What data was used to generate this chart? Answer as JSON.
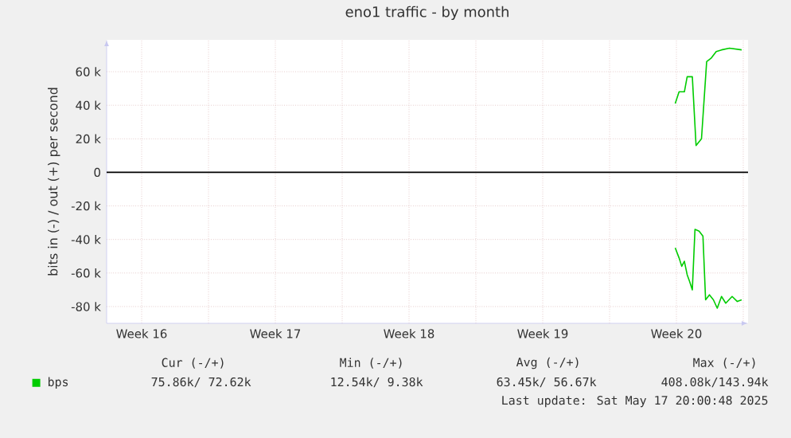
{
  "chart_data": {
    "type": "line",
    "title": "eno1 traffic - by month",
    "ylabel": "bits in (-) / out (+) per second",
    "xlim": [
      "2025-04-14T16:00",
      "2025-05-18T06:00"
    ],
    "ylim": [
      -90000,
      79000
    ],
    "xticks": [
      {
        "value": "2025-04-16T12:00",
        "label": "Week 16"
      },
      {
        "value": "2025-04-20",
        "label": null
      },
      {
        "value": "2025-04-23T12:00",
        "label": "Week 17"
      },
      {
        "value": "2025-04-27",
        "label": null
      },
      {
        "value": "2025-04-30T12:00",
        "label": "Week 18"
      },
      {
        "value": "2025-05-04",
        "label": null
      },
      {
        "value": "2025-05-07T12:00",
        "label": "Week 19"
      },
      {
        "value": "2025-05-11",
        "label": null
      },
      {
        "value": "2025-05-14T12:00",
        "label": "Week 20"
      },
      {
        "value": "2025-05-18",
        "label": null
      }
    ],
    "yticks": [
      {
        "value": -80000,
        "label": "-80 k"
      },
      {
        "value": -60000,
        "label": "-60 k"
      },
      {
        "value": -40000,
        "label": "-40 k"
      },
      {
        "value": -20000,
        "label": "-20 k"
      },
      0,
      {
        "value": 20000,
        "label": "20 k"
      },
      {
        "value": 40000,
        "label": "40 k"
      },
      {
        "value": 60000,
        "label": "60 k"
      }
    ],
    "grid": true,
    "legend": "bottom left",
    "line_style": "solid",
    "marker": "none",
    "ref_lines": [
      {
        "axis": "y",
        "value": 0,
        "color": "#000000"
      }
    ],
    "series": [
      {
        "name": "bps",
        "color": "#00cc00",
        "x": [
          "2025-05-14T10:30",
          "2025-05-14T15:20",
          "2025-05-14T22:00",
          "2025-05-15T01:30",
          "2025-05-15T08:00",
          "2025-05-15T12:40",
          "2025-05-15T19:30",
          "2025-05-16T02:00",
          "2025-05-16T07:30",
          "2025-05-16T14:00",
          "2025-05-16T20:40",
          "2025-05-17T06:40",
          "2025-05-17T22:00"
        ],
        "values": [
          41000,
          48000,
          48000,
          57000,
          57000,
          16000,
          20000,
          66000,
          68000,
          72000,
          73000,
          74000,
          73000
        ]
      },
      {
        "color": "#00cc00",
        "x": [
          "2025-05-14T10:30",
          "2025-05-14T15:20",
          "2025-05-14T18:40",
          "2025-05-14T22:00",
          "2025-05-15T01:30",
          "2025-05-15T04:30",
          "2025-05-15T08:00",
          "2025-05-15T11:20",
          "2025-05-15T16:30",
          "2025-05-15T21:20",
          "2025-05-16T00:40",
          "2025-05-16T05:30",
          "2025-05-16T10:30",
          "2025-05-16T15:20",
          "2025-05-16T20:40",
          "2025-05-17T02:00",
          "2025-05-17T10:00",
          "2025-05-17T16:30",
          "2025-05-17T22:00"
        ],
        "values": [
          -45000,
          -51000,
          -56000,
          -53000,
          -61000,
          -65000,
          -70000,
          -34000,
          -35000,
          -38000,
          -76000,
          -73000,
          -76000,
          -81000,
          -74000,
          -78000,
          -74000,
          -77000,
          -76000
        ]
      }
    ],
    "annotations": [
      "Cur (-/+)",
      "Min (-/+)",
      "Avg (-/+)",
      "Max (-/+)",
      "75.86k/ 72.62k",
      "12.54k/   9.38k",
      "63.45k/ 56.67k",
      "408.08k/143.94k",
      "Last update: Sat May 17 20:00:48 2025"
    ]
  }
}
